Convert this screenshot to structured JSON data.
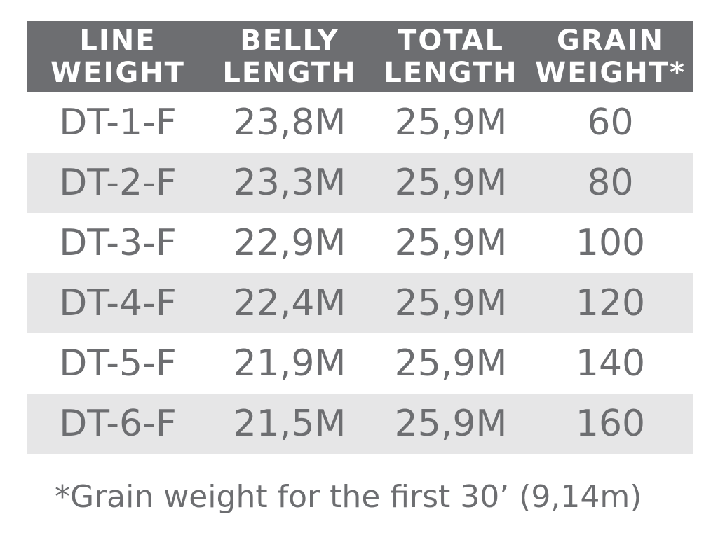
{
  "table": {
    "headers": [
      [
        "LINE",
        "WEIGHT"
      ],
      [
        "BELLY",
        "LENGTH"
      ],
      [
        "TOTAL",
        "LENGTH"
      ],
      [
        "GRAIN",
        "WEIGHT*"
      ]
    ],
    "rows": [
      [
        "DT-1-F",
        "23,8M",
        "25,9M",
        60
      ],
      [
        "DT-2-F",
        "23,3M",
        "25,9M",
        80
      ],
      [
        "DT-3-F",
        "22,9M",
        "25,9M",
        100
      ],
      [
        "DT-4-F",
        "22,4M",
        "25,9M",
        120
      ],
      [
        "DT-5-F",
        "21,9M",
        "25,9M",
        140
      ],
      [
        "DT-6-F",
        "21,5M",
        "25,9M",
        160
      ]
    ]
  },
  "footnote": "*Grain weight for the first 30’ (9,14m)"
}
